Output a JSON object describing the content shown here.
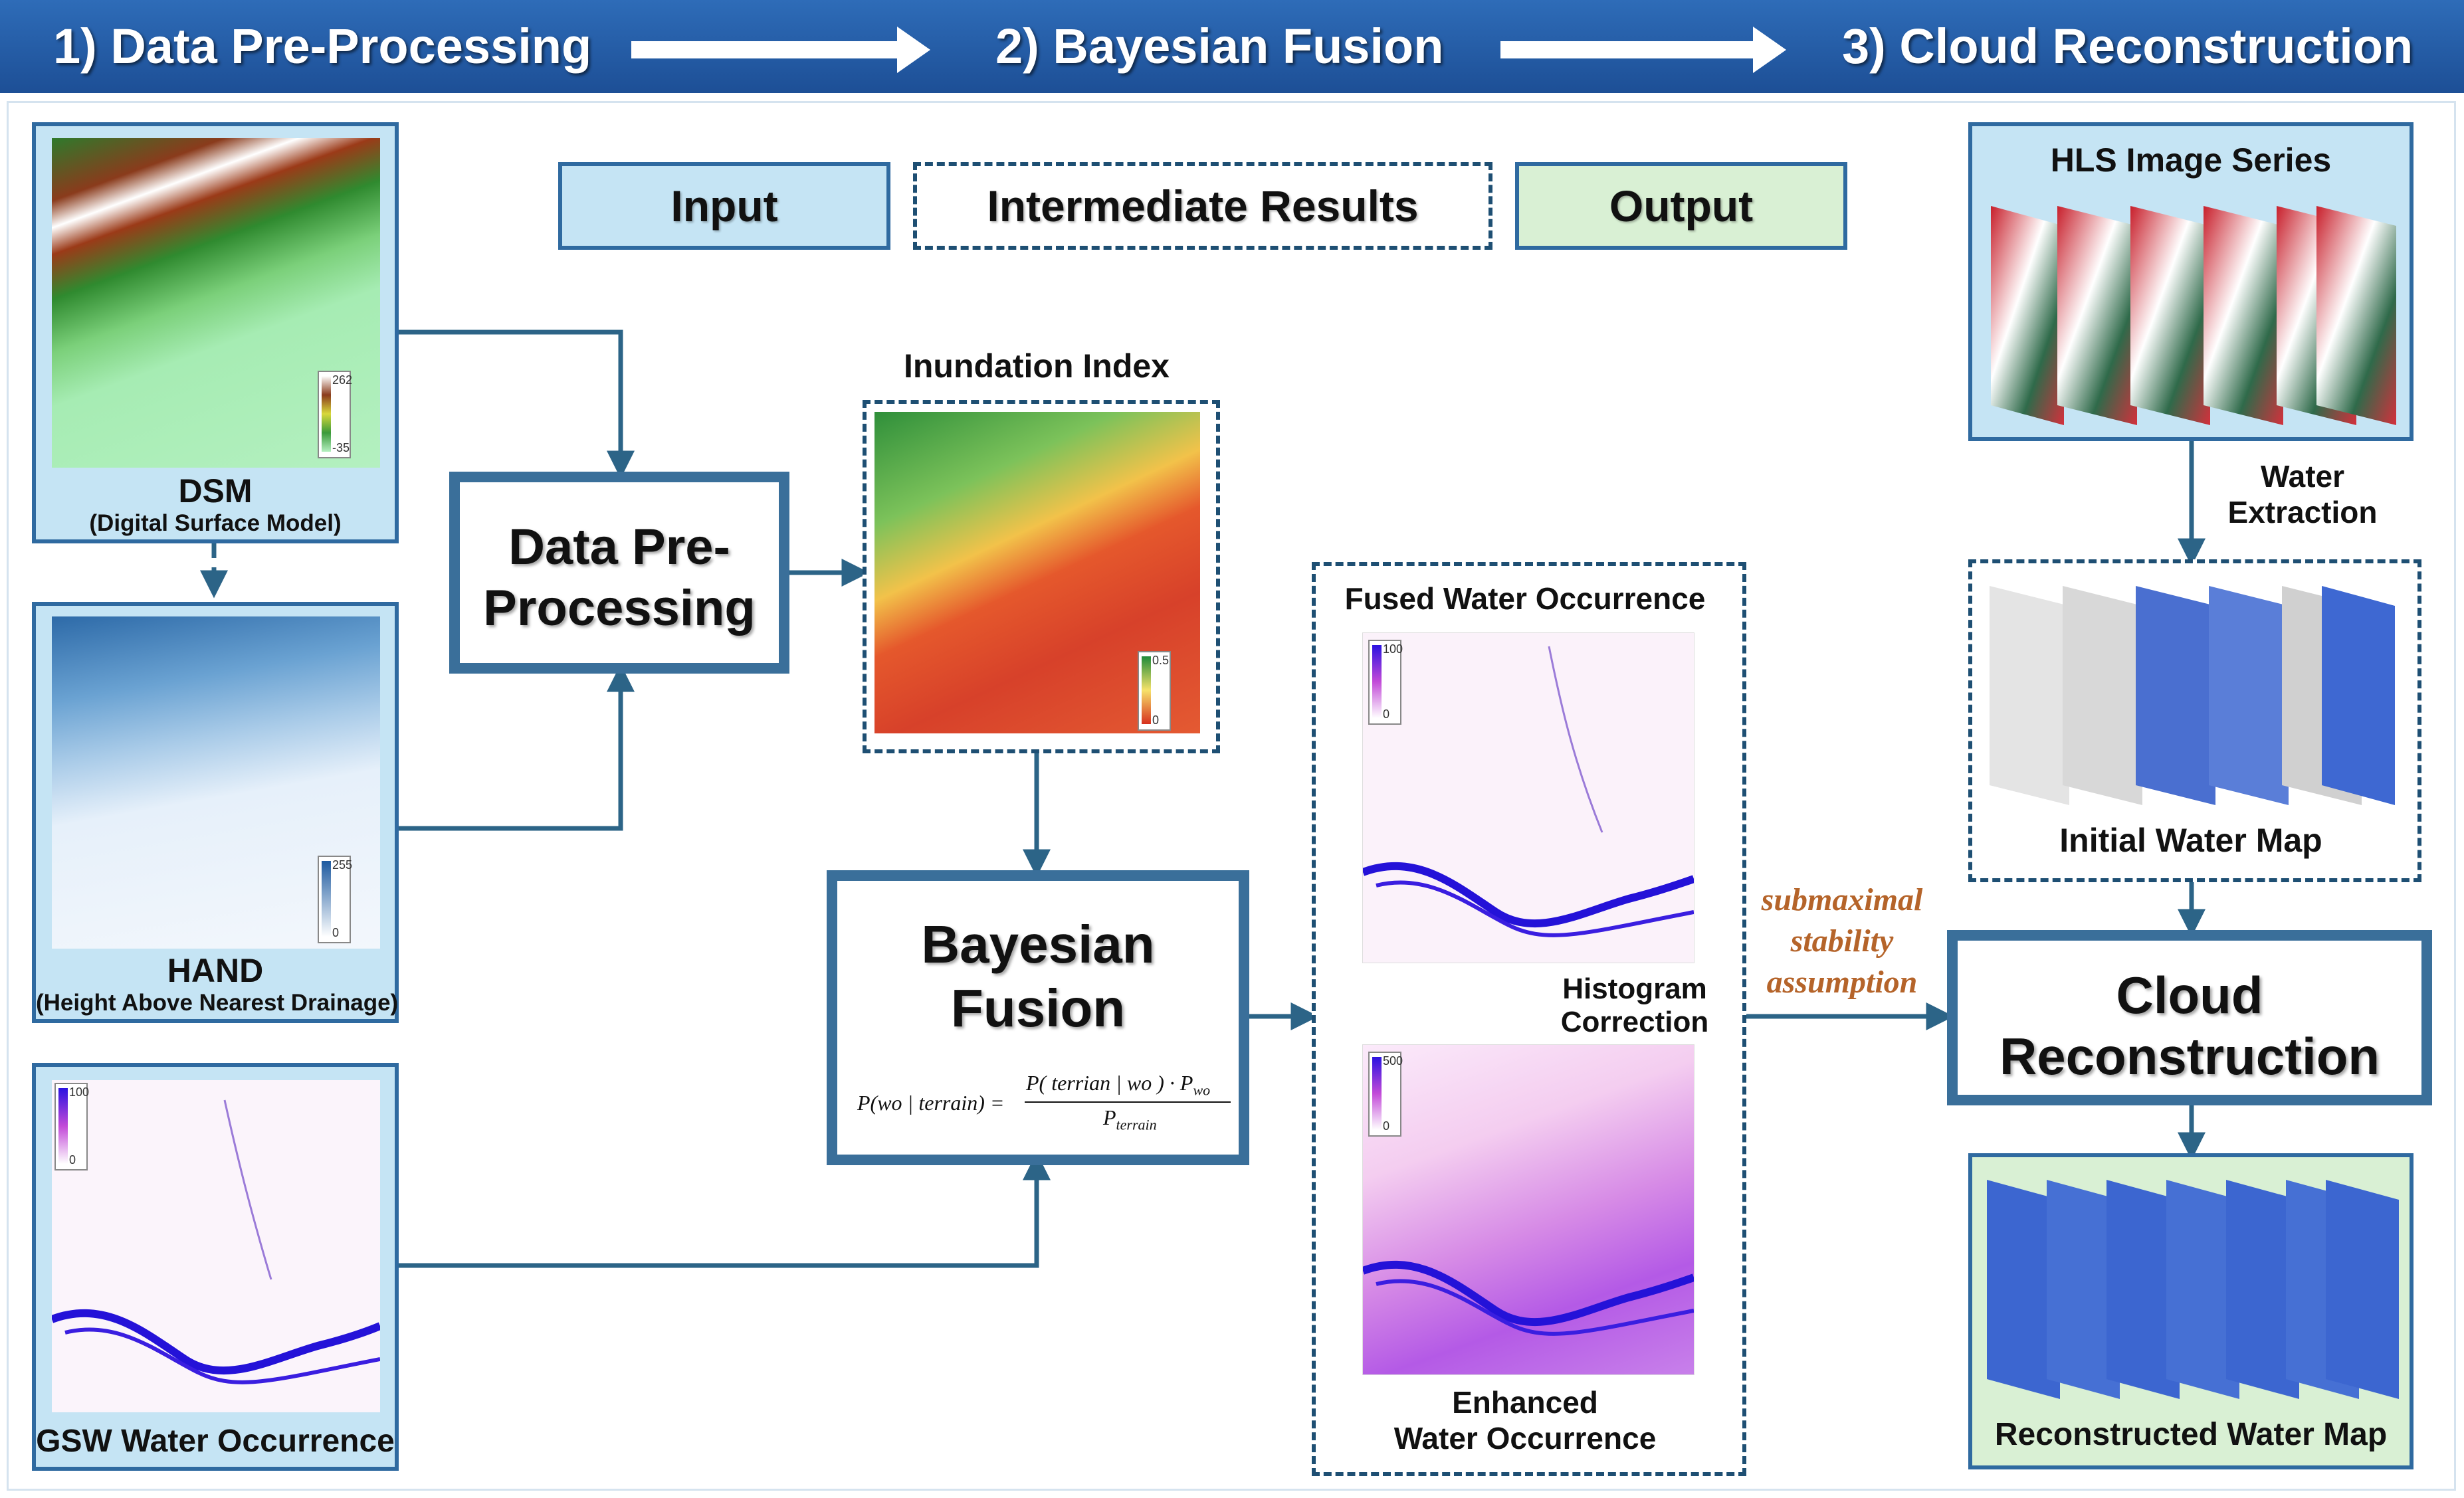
{
  "header": {
    "stage1": "1) Data Pre-Processing",
    "stage2": "2) Bayesian Fusion",
    "stage3": "3) Cloud Reconstruction"
  },
  "legend": {
    "input": "Input",
    "intermediate": "Intermediate Results",
    "output": "Output"
  },
  "inputs": {
    "dsm": {
      "title": "DSM",
      "subtitle": "(Digital Surface Model)",
      "cbar_max": "262",
      "cbar_min": "-35"
    },
    "hand": {
      "title": "HAND",
      "subtitle": "(Height Above Nearest Drainage)",
      "cbar_max": "255",
      "cbar_min": "0"
    },
    "gsw": {
      "title": "GSW Water Occurrence",
      "cbar_max": "100",
      "cbar_min": "0"
    }
  },
  "processes": {
    "preprocessing": "Data Pre-\nProcessing",
    "fusion": "Bayesian\nFusion",
    "reconstruction": "Cloud\nReconstruction"
  },
  "formula": {
    "lhs": "P(wo | terrain) =",
    "numerator": "P( terrian | wo ) · P",
    "numerator_sub": "wo",
    "denominator": "P",
    "denominator_sub": "terrain"
  },
  "intermediate": {
    "inundation": {
      "title": "Inundation Index",
      "cbar_max": "0.5",
      "cbar_min": "0"
    },
    "fused": {
      "title": "Fused Water Occurrence",
      "cbar_max": "100",
      "cbar_min": "0"
    },
    "histogram": "Histogram\nCorrection",
    "enhanced": {
      "title": "Enhanced\nWater Occurrence",
      "cbar_max": "500",
      "cbar_min": "0"
    },
    "initial": {
      "title": "Initial Water Map"
    }
  },
  "hls": {
    "title": "HLS Image Series"
  },
  "water_extraction": "Water\nExtraction",
  "assumption": "submaximal\nstability\nassumption",
  "output": {
    "title": "Reconstructed Water Map"
  },
  "colors": {
    "banner": "#1d4f96",
    "input_fill": "#c5e4f4",
    "output_fill": "#d9f0d4",
    "arrow": "#2c6487",
    "process_border": "#3a6f9a",
    "note": "#b5642a"
  }
}
